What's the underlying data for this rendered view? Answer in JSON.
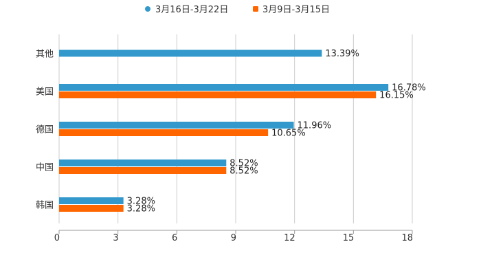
{
  "chart_data": {
    "type": "bar",
    "orientation": "horizontal",
    "title": "",
    "categories": [
      "其他",
      "美国",
      "德国",
      "中国",
      "韩国"
    ],
    "series": [
      {
        "name": "3月16日-3月22日",
        "color": "#3399cc",
        "values": [
          13.39,
          16.78,
          11.96,
          8.52,
          3.28
        ],
        "labels": [
          "13.39%",
          "16.78%",
          "11.96%",
          "8.52%",
          "3.28%"
        ]
      },
      {
        "name": "3月9日-3月15日",
        "color": "#ff6600",
        "values": [
          null,
          16.15,
          10.65,
          8.52,
          3.28
        ],
        "labels": [
          null,
          "16.15%",
          "10.65%",
          "8.52%",
          "3.28%"
        ]
      }
    ],
    "xlim": [
      0,
      18
    ],
    "xticks": [
      "0",
      "3",
      "6",
      "9",
      "12",
      "15",
      "18"
    ],
    "grid": true,
    "legend": "top-center"
  }
}
